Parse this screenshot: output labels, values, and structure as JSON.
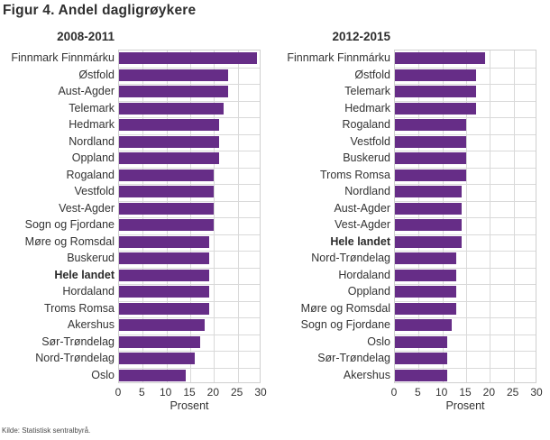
{
  "title": "Figur 4. Andel dagligrøykere",
  "source": "Kilde: Statistisk sentralbyrå.",
  "colors": {
    "bar": "#662d87",
    "grid": "#d9d9d9",
    "plot_border": "#cfcfcf",
    "text": "#333333",
    "title_text": "#2e2e2e"
  },
  "chart_data": [
    {
      "type": "bar",
      "orientation": "horizontal",
      "title": "2008-2011",
      "xlabel": "Prosent",
      "xlim": [
        0,
        30
      ],
      "xticks": [
        0,
        5,
        10,
        15,
        20,
        25,
        30
      ],
      "grid": "on",
      "bold_category": "Hele landet",
      "categories": [
        "Finnmark Finnmárku",
        "Østfold",
        "Aust-Agder",
        "Telemark",
        "Hedmark",
        "Nordland",
        "Oppland",
        "Rogaland",
        "Vestfold",
        "Vest-Agder",
        "Sogn og Fjordane",
        "Møre og Romsdal",
        "Buskerud",
        "Hele landet",
        "Hordaland",
        "Troms Romsa",
        "Akershus",
        "Sør-Trøndelag",
        "Nord-Trøndelag",
        "Oslo"
      ],
      "values": [
        29,
        23,
        23,
        22,
        21,
        21,
        21,
        20,
        20,
        20,
        20,
        19,
        19,
        19,
        19,
        19,
        18,
        17,
        16,
        14
      ]
    },
    {
      "type": "bar",
      "orientation": "horizontal",
      "title": "2012-2015",
      "xlabel": "Prosent",
      "xlim": [
        0,
        30
      ],
      "xticks": [
        0,
        5,
        10,
        15,
        20,
        25,
        30
      ],
      "grid": "on",
      "bold_category": "Hele landet",
      "categories": [
        "Finnmark Finnmárku",
        "Østfold",
        "Telemark",
        "Hedmark",
        "Rogaland",
        "Vestfold",
        "Buskerud",
        "Troms Romsa",
        "Nordland",
        "Aust-Agder",
        "Vest-Agder",
        "Hele landet",
        "Nord-Trøndelag",
        "Hordaland",
        "Oppland",
        "Møre og Romsdal",
        "Sogn og Fjordane",
        "Oslo",
        "Sør-Trøndelag",
        "Akershus"
      ],
      "values": [
        19,
        17,
        17,
        17,
        15,
        15,
        15,
        15,
        14,
        14,
        14,
        14,
        13,
        13,
        13,
        13,
        12,
        11,
        11,
        11
      ]
    }
  ]
}
